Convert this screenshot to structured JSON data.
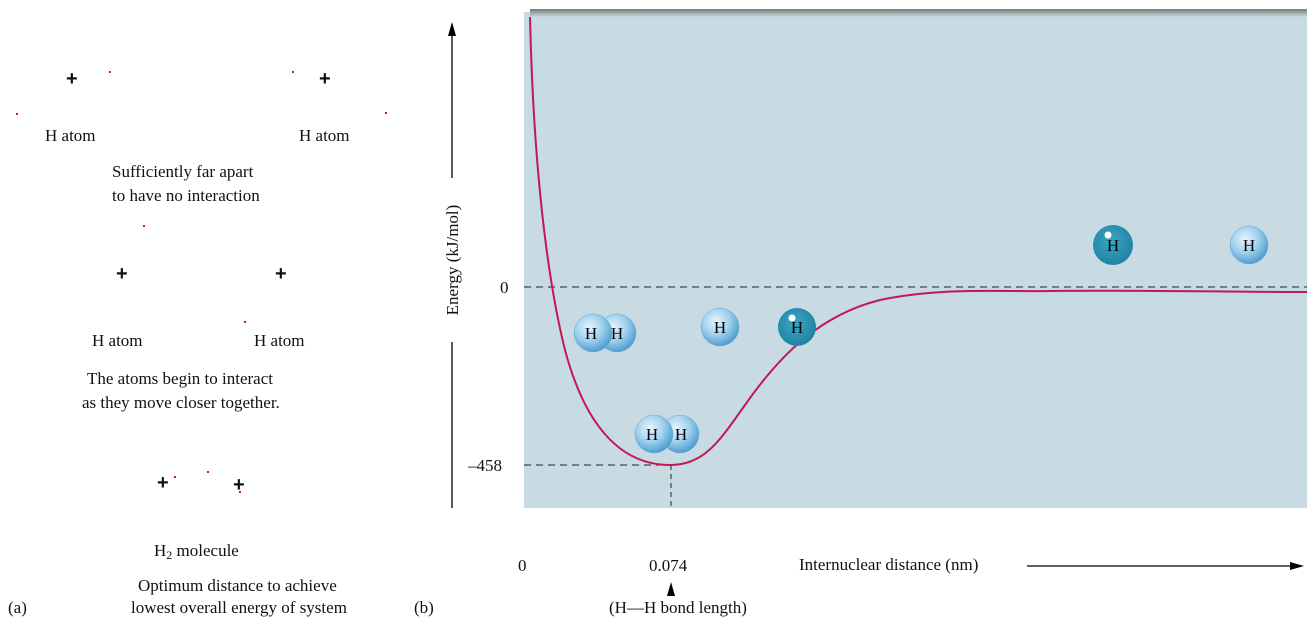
{
  "panel_a": {
    "panel_label": "(a)",
    "stage1": {
      "atom_left": "H atom",
      "atom_right": "H atom",
      "caption_line1": "Sufficiently far apart",
      "caption_line2": "to have no interaction"
    },
    "stage2": {
      "atom_left": "H atom",
      "atom_right": "H atom",
      "caption_line1": "The atoms begin to interact",
      "caption_line2": "as they move closer together."
    },
    "stage3": {
      "molecule_main": "H",
      "molecule_sub": "2",
      "molecule_rest": " molecule",
      "caption_line1": "Optimum distance to achieve",
      "caption_line2": "lowest overall energy of system"
    },
    "nucleus_symbol": "+"
  },
  "panel_b": {
    "panel_label": "(b)",
    "ylabel": "Energy (kJ/mol)",
    "xlabel": "Internuclear distance (nm)",
    "y_tick_zero": "0",
    "y_tick_min": "–458",
    "x_tick_zero": "0",
    "x_tick_bond": "0.074",
    "bond_length_note": "(H—H bond length)",
    "atom_symbol": "H"
  },
  "colors": {
    "plot_background": "#c8dbe2",
    "curve": "#c2185b",
    "atom_light": "#86c3e6",
    "atom_dark": "#2a8fb0"
  },
  "chart_data": {
    "type": "line",
    "xlabel": "Internuclear distance (nm)",
    "ylabel": "Energy (kJ/mol)",
    "y_ticks": [
      0,
      -458
    ],
    "x_ticks": [
      0,
      0.074
    ],
    "equilibrium": {
      "x": 0.074,
      "y": -458
    },
    "series": [
      {
        "curve": "potential energy vs internuclear distance",
        "points": [
          [
            0.004,
            740
          ],
          [
            0.01,
            120
          ],
          [
            0.02,
            -200
          ],
          [
            0.035,
            -380
          ],
          [
            0.05,
            -440
          ],
          [
            0.074,
            -458
          ],
          [
            0.1,
            -400
          ],
          [
            0.15,
            -200
          ],
          [
            0.2,
            -80
          ],
          [
            0.3,
            -25
          ],
          [
            0.45,
            -10
          ],
          [
            0.6,
            -8
          ]
        ]
      }
    ]
  }
}
